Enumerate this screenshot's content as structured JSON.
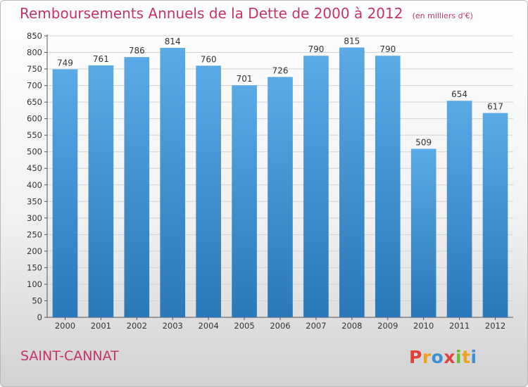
{
  "chart_data": {
    "type": "bar",
    "title": "Remboursements Annuels de la Dette de 2000 à 2012",
    "unit": "(en milliers d'€)",
    "categories": [
      "2000",
      "2001",
      "2002",
      "2003",
      "2004",
      "2005",
      "2006",
      "2007",
      "2008",
      "2009",
      "2010",
      "2011",
      "2012"
    ],
    "values": [
      749,
      761,
      786,
      814,
      760,
      701,
      726,
      790,
      815,
      790,
      509,
      654,
      617
    ],
    "ylim": [
      0,
      850
    ],
    "yticks": [
      0,
      50,
      100,
      150,
      200,
      250,
      300,
      350,
      400,
      450,
      500,
      550,
      600,
      650,
      700,
      750,
      800,
      850
    ],
    "grid": true,
    "bar_color_top": "#5aaae6",
    "bar_color_bottom": "#2a78b8"
  },
  "commune": "SAINT-CANNAT",
  "logo": {
    "letters": [
      "P",
      "r",
      "o",
      "x",
      "i",
      "t",
      "i"
    ],
    "colors": [
      "#e3403a",
      "#f0a020",
      "#3d8fd1",
      "#e3403a",
      "#6dba2f",
      "#f0a020",
      "#3d8fd1"
    ]
  },
  "colors": {
    "title": "#c4336b",
    "commune": "#c4336b"
  }
}
